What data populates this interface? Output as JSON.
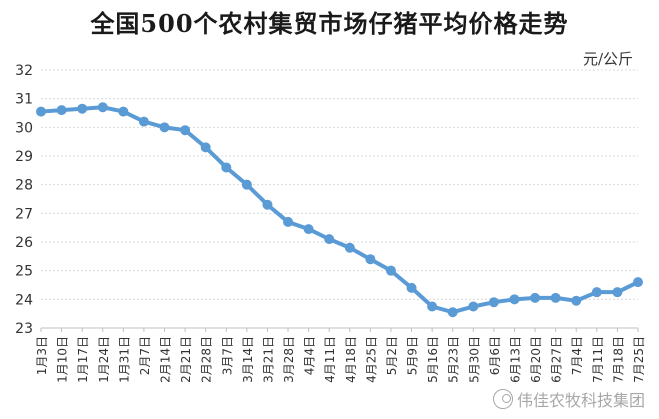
{
  "chart_data": {
    "type": "line",
    "title": "全国500个农村集贸市场仔猪平均价格走势",
    "unit_label": "元/公斤",
    "ylim": [
      23,
      32
    ],
    "yticks": [
      23,
      24,
      25,
      26,
      27,
      28,
      29,
      30,
      31,
      32
    ],
    "grid": true,
    "categories": [
      "1月3日",
      "1月10日",
      "1月17日",
      "1月24日",
      "1月31日",
      "2月7日",
      "2月14日",
      "2月21日",
      "2月28日",
      "3月7日",
      "3月14日",
      "3月21日",
      "3月28日",
      "4月4日",
      "4月11日",
      "4月18日",
      "4月25日",
      "5月2日",
      "5月9日",
      "5月16日",
      "5月23日",
      "5月30日",
      "6月6日",
      "6月13日",
      "6月20日",
      "6月27日",
      "7月4日",
      "7月11日",
      "7月18日",
      "7月25日"
    ],
    "series": [
      {
        "values": [
          30.55,
          30.6,
          30.65,
          30.7,
          30.55,
          30.2,
          30.0,
          29.9,
          29.3,
          28.6,
          28.0,
          27.3,
          26.7,
          26.45,
          26.1,
          25.8,
          25.4,
          25.0,
          24.4,
          23.75,
          23.55,
          23.75,
          23.9,
          24.0,
          24.05,
          24.05,
          23.95,
          24.25,
          24.25,
          24.6
        ],
        "color": "#5b9bd5"
      }
    ]
  },
  "watermark": {
    "text": "伟佳农牧科技集团",
    "icon": "wechat-icon"
  }
}
